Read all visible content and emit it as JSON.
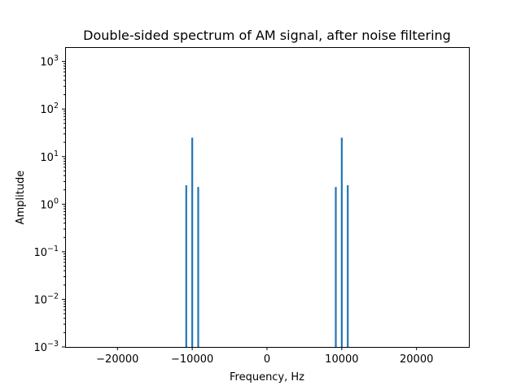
{
  "chart_data": {
    "type": "line",
    "title": "Double-sided spectrum of AM signal, after noise filtering",
    "xlabel": "Frequency, Hz",
    "ylabel": "Amplitude",
    "xlim": [
      -27000,
      27000
    ],
    "ylim": [
      0.001,
      2000
    ],
    "yscale": "log",
    "grid": false,
    "legend": "none",
    "x_ticks": [
      {
        "value": -20000,
        "label": "−20000"
      },
      {
        "value": -10000,
        "label": "−10000"
      },
      {
        "value": 0,
        "label": "0"
      },
      {
        "value": 10000,
        "label": "10000"
      },
      {
        "value": 20000,
        "label": "20000"
      }
    ],
    "y_ticks": [
      {
        "value": 0.001,
        "base": "10",
        "exp": "−3"
      },
      {
        "value": 0.01,
        "base": "10",
        "exp": "−2"
      },
      {
        "value": 0.1,
        "base": "10",
        "exp": "−1"
      },
      {
        "value": 1,
        "base": "10",
        "exp": "0"
      },
      {
        "value": 10,
        "base": "10",
        "exp": "1"
      },
      {
        "value": 100,
        "base": "10",
        "exp": "2"
      },
      {
        "value": 1000,
        "base": "10",
        "exp": "3"
      }
    ],
    "series": [
      {
        "color": "#1f77b4",
        "peaks": [
          {
            "x": -10800,
            "y": 2.5
          },
          {
            "x": -10000,
            "y": 25
          },
          {
            "x": -9200,
            "y": 2.3
          },
          {
            "x": 9200,
            "y": 2.3
          },
          {
            "x": 10000,
            "y": 25
          },
          {
            "x": 10800,
            "y": 2.5
          }
        ]
      }
    ]
  }
}
